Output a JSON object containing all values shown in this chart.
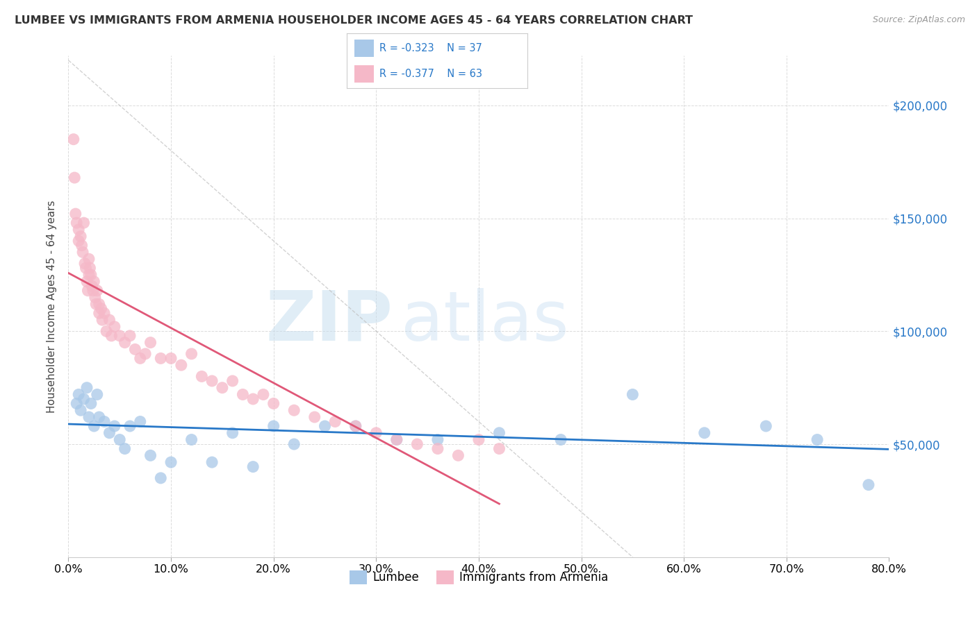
{
  "title": "LUMBEE VS IMMIGRANTS FROM ARMENIA HOUSEHOLDER INCOME AGES 45 - 64 YEARS CORRELATION CHART",
  "source": "Source: ZipAtlas.com",
  "ylabel": "Householder Income Ages 45 - 64 years",
  "x_tick_labels": [
    "0.0%",
    "10.0%",
    "20.0%",
    "30.0%",
    "40.0%",
    "50.0%",
    "60.0%",
    "70.0%",
    "80.0%"
  ],
  "x_tick_values": [
    0,
    10,
    20,
    30,
    40,
    50,
    60,
    70,
    80
  ],
  "y_tick_labels": [
    "$50,000",
    "$100,000",
    "$150,000",
    "$200,000"
  ],
  "y_tick_values": [
    50000,
    100000,
    150000,
    200000
  ],
  "xlim": [
    0,
    80
  ],
  "ylim": [
    0,
    222000
  ],
  "legend_label_blue": "Lumbee",
  "legend_label_pink": "Immigrants from Armenia",
  "r_blue": -0.323,
  "n_blue": 37,
  "r_pink": -0.377,
  "n_pink": 63,
  "blue_color": "#a8c8e8",
  "pink_color": "#f5b8c8",
  "blue_line_color": "#2878c8",
  "pink_line_color": "#e05878",
  "text_color": "#2878c8",
  "lumbee_x": [
    0.8,
    1.0,
    1.2,
    1.5,
    1.8,
    2.0,
    2.2,
    2.5,
    2.8,
    3.0,
    3.5,
    4.0,
    4.5,
    5.0,
    5.5,
    6.0,
    7.0,
    8.0,
    9.0,
    10.0,
    12.0,
    14.0,
    16.0,
    18.0,
    20.0,
    22.0,
    25.0,
    28.0,
    32.0,
    36.0,
    42.0,
    48.0,
    55.0,
    62.0,
    68.0,
    73.0,
    78.0
  ],
  "lumbee_y": [
    68000,
    72000,
    65000,
    70000,
    75000,
    62000,
    68000,
    58000,
    72000,
    62000,
    60000,
    55000,
    58000,
    52000,
    48000,
    58000,
    60000,
    45000,
    35000,
    42000,
    52000,
    42000,
    55000,
    40000,
    58000,
    50000,
    58000,
    58000,
    52000,
    52000,
    55000,
    52000,
    72000,
    55000,
    58000,
    52000,
    32000
  ],
  "armenia_x": [
    0.5,
    0.6,
    0.7,
    0.8,
    1.0,
    1.0,
    1.2,
    1.3,
    1.4,
    1.5,
    1.6,
    1.7,
    1.8,
    1.9,
    2.0,
    2.0,
    2.1,
    2.2,
    2.3,
    2.4,
    2.5,
    2.6,
    2.7,
    2.8,
    3.0,
    3.0,
    3.2,
    3.3,
    3.5,
    3.7,
    4.0,
    4.2,
    4.5,
    5.0,
    5.5,
    6.0,
    6.5,
    7.0,
    7.5,
    8.0,
    9.0,
    10.0,
    11.0,
    12.0,
    13.0,
    14.0,
    15.0,
    16.0,
    17.0,
    18.0,
    19.0,
    20.0,
    22.0,
    24.0,
    26.0,
    28.0,
    30.0,
    32.0,
    34.0,
    36.0,
    38.0,
    40.0,
    42.0
  ],
  "armenia_y": [
    185000,
    168000,
    152000,
    148000,
    145000,
    140000,
    142000,
    138000,
    135000,
    148000,
    130000,
    128000,
    122000,
    118000,
    132000,
    125000,
    128000,
    125000,
    120000,
    118000,
    122000,
    115000,
    112000,
    118000,
    112000,
    108000,
    110000,
    105000,
    108000,
    100000,
    105000,
    98000,
    102000,
    98000,
    95000,
    98000,
    92000,
    88000,
    90000,
    95000,
    88000,
    88000,
    85000,
    90000,
    80000,
    78000,
    75000,
    78000,
    72000,
    70000,
    72000,
    68000,
    65000,
    62000,
    60000,
    58000,
    55000,
    52000,
    50000,
    48000,
    45000,
    52000,
    48000
  ],
  "diag_line": [
    [
      0,
      55
    ],
    [
      220000,
      0
    ]
  ],
  "watermark_zip": "ZIP",
  "watermark_atlas": "atlas",
  "background_color": "#ffffff",
  "grid_color": "#d8d8d8"
}
